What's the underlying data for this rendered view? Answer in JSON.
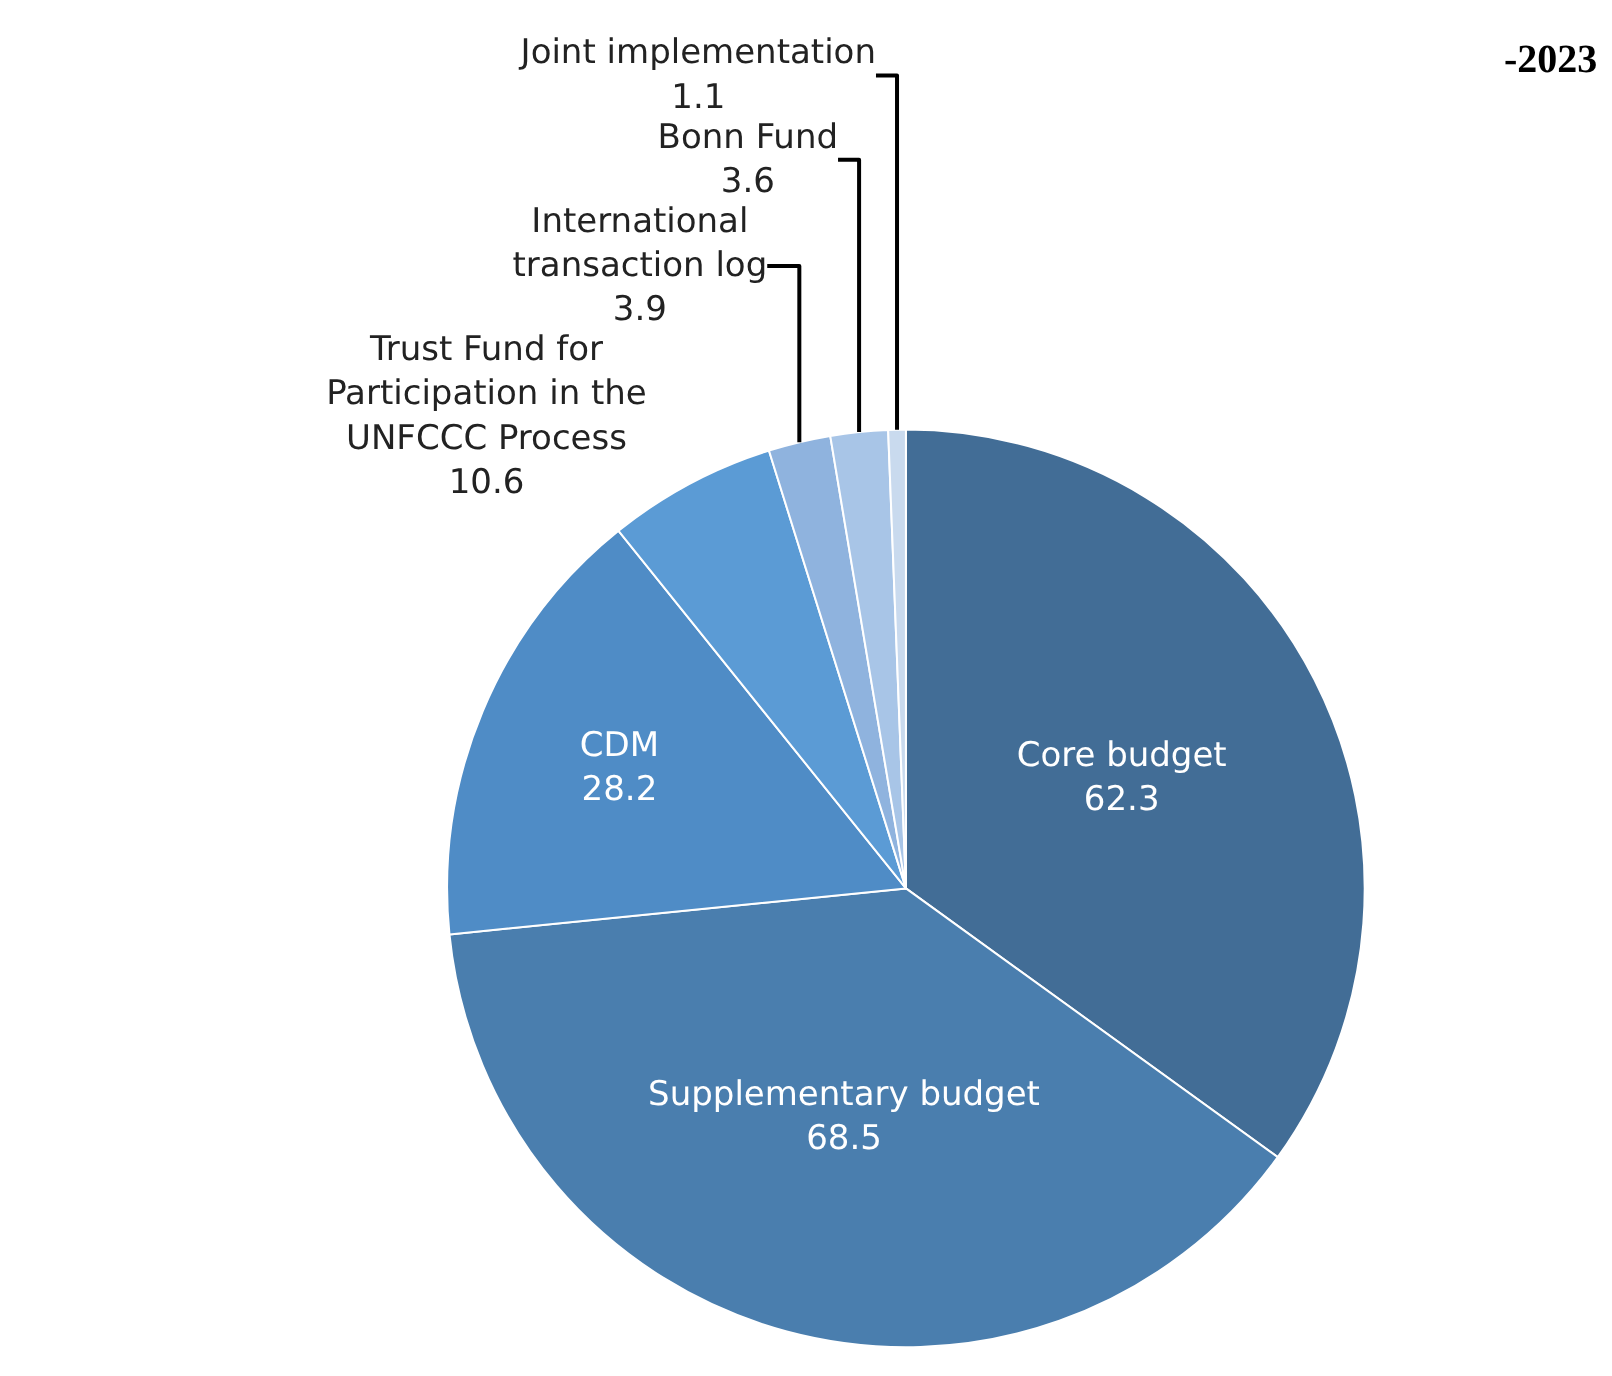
{
  "chart_data": {
    "type": "pie",
    "categories": [
      "Core budget",
      "Supplementary budget",
      "CDM",
      "Trust Fund for Participation in the UNFCCC Process",
      "International transaction log",
      "Bonn Fund",
      "Joint implementation"
    ],
    "values": [
      62.3,
      68.5,
      28.2,
      10.6,
      3.9,
      3.6,
      1.1
    ],
    "colors": [
      "#426d96",
      "#4a7eae",
      "#4f8cc6",
      "#5b9bd5",
      "#8fb3de",
      "#a8c5e7",
      "#c9daee"
    ],
    "data_labels": true,
    "annotations": [
      "-2023"
    ],
    "legend": false
  }
}
